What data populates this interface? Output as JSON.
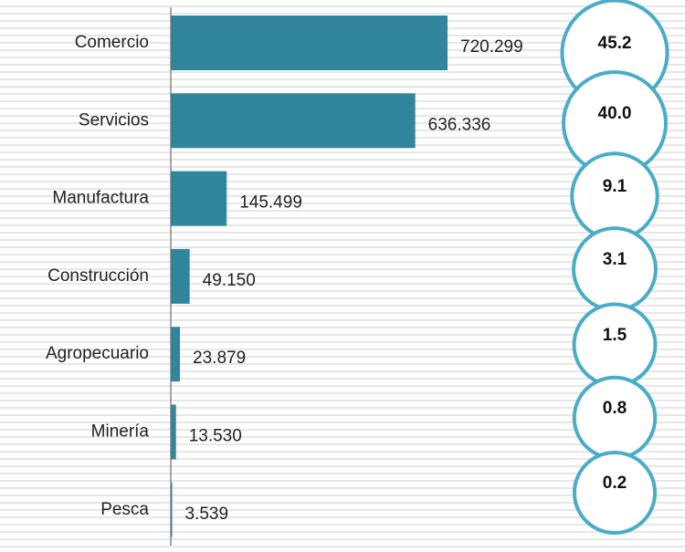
{
  "chart_data": {
    "type": "bar",
    "orientation": "horizontal",
    "categories": [
      "Comercio",
      "Servicios",
      "Manufactura",
      "Construcción",
      "Agropecuario",
      "Minería",
      "Pesca"
    ],
    "values": [
      720299,
      636336,
      145499,
      49150,
      23879,
      13530,
      3539
    ],
    "value_labels": [
      "720.299",
      "636.336",
      "145.499",
      "49.150",
      "23.879",
      "13.530",
      "3.539"
    ],
    "color": "#31859c",
    "shares": [
      45.2,
      40.0,
      9.1,
      3.1,
      1.5,
      0.8,
      0.2
    ],
    "share_labels": [
      "45.2",
      "40.0",
      "9.1",
      "3.1",
      "1.5",
      "0.8",
      "0.2"
    ],
    "share_color": "#4bacc6"
  }
}
